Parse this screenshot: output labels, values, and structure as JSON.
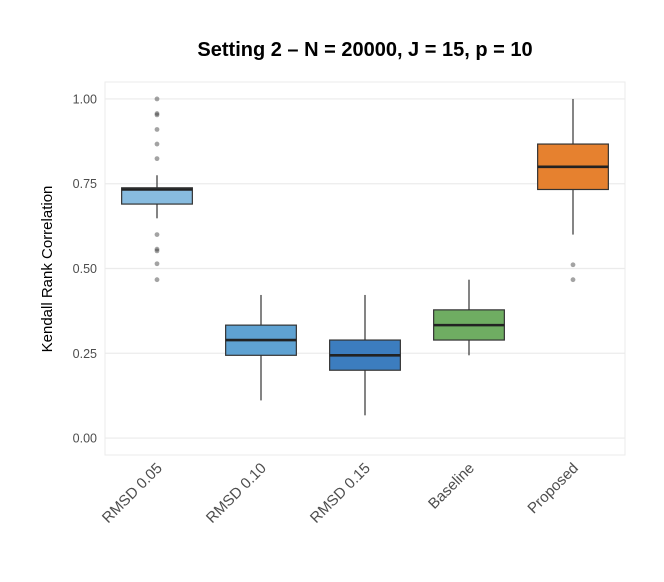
{
  "chart_data": {
    "type": "boxplot",
    "title": "Setting 2 – N = 20000, J = 15, p = 10",
    "xlabel": "",
    "ylabel": "Kendall Rank Correlation",
    "ylim": [
      -0.05,
      1.05
    ],
    "yticks": [
      "0.00",
      "0.25",
      "0.50",
      "0.75",
      "1.00"
    ],
    "ytick_values": [
      0,
      0.25,
      0.5,
      0.75,
      1.0
    ],
    "grid": true,
    "legend": "none",
    "categories": [
      "RMSD 0.05",
      "RMSD 0.10",
      "RMSD 0.15",
      "Baseline",
      "Proposed"
    ],
    "boxes": [
      {
        "name": "RMSD 0.05",
        "color": "#88BCE0",
        "whisker_low": 0.648,
        "q1": 0.69,
        "median": 0.733,
        "q3": 0.738,
        "whisker_high": 0.775,
        "outliers": [
          0.467,
          0.514,
          0.552,
          0.557,
          0.6,
          0.824,
          0.867,
          0.91,
          0.953,
          0.957,
          1.0
        ]
      },
      {
        "name": "RMSD 0.10",
        "color": "#5FA2D2",
        "whisker_low": 0.111,
        "q1": 0.244,
        "median": 0.289,
        "q3": 0.333,
        "whisker_high": 0.422,
        "outliers": []
      },
      {
        "name": "RMSD 0.15",
        "color": "#3C7DBF",
        "whisker_low": 0.067,
        "q1": 0.2,
        "median": 0.244,
        "q3": 0.289,
        "whisker_high": 0.422,
        "outliers": []
      },
      {
        "name": "Baseline",
        "color": "#6FAD62",
        "whisker_low": 0.244,
        "q1": 0.289,
        "median": 0.333,
        "q3": 0.378,
        "whisker_high": 0.467,
        "outliers": []
      },
      {
        "name": "Proposed",
        "color": "#E6812F",
        "whisker_low": 0.6,
        "q1": 0.733,
        "median": 0.8,
        "q3": 0.867,
        "whisker_high": 1.0,
        "outliers": [
          0.467,
          0.511
        ]
      }
    ]
  }
}
